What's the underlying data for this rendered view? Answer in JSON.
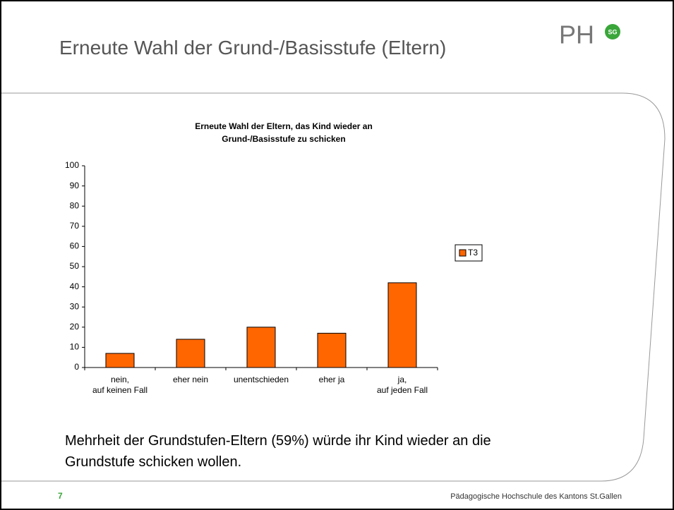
{
  "slide": {
    "title": "Erneute Wahl der Grund-/Basisstufe (Eltern)",
    "logo": "PH",
    "logo_badge": "SG",
    "body": "Mehrheit der Grundstufen-Eltern (59%) würde ihr Kind wieder an die\nGrundstufe schicken wollen.",
    "page_number": "7",
    "footer": "Pädagogische Hochschule des Kantons St.Gallen"
  },
  "chart_data": {
    "type": "bar",
    "title": "Erneute Wahl der Eltern, das Kind wieder an\nGrund-/Basisstufe zu schicken",
    "categories": [
      "nein,\nauf keinen Fall",
      "eher nein",
      "unentschieden",
      "eher ja",
      "ja,\nauf jeden Fall"
    ],
    "series": [
      {
        "name": "T3",
        "color": "#ff6600",
        "values": [
          7,
          14,
          20,
          17,
          42
        ]
      }
    ],
    "ylim": [
      0,
      100
    ],
    "yticks": [
      0,
      10,
      20,
      30,
      40,
      50,
      60,
      70,
      80,
      90,
      100
    ],
    "legend": "right"
  }
}
